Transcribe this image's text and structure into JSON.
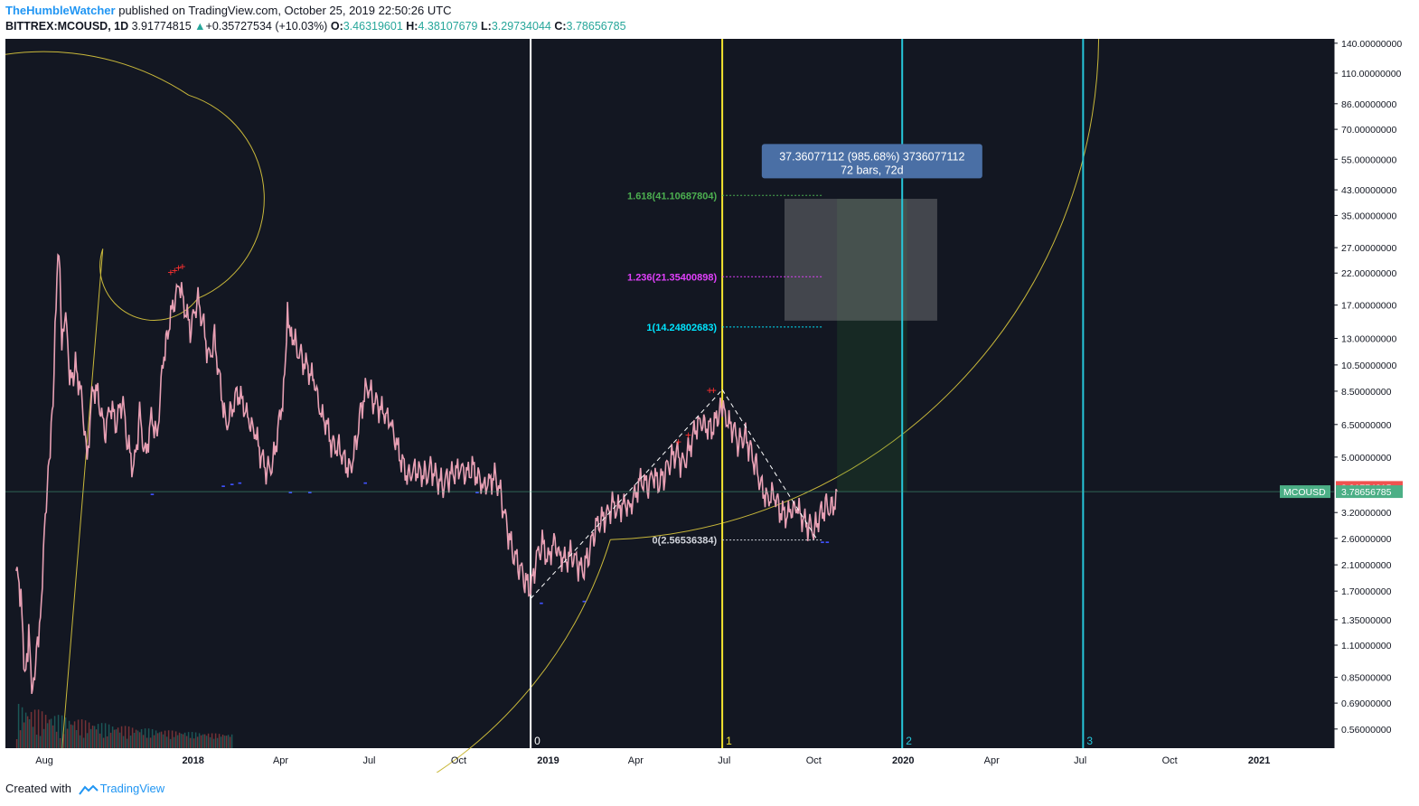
{
  "header": {
    "author": "TheHumbleWatcher",
    "published_text": "published on TradingView.com, October 25, 2019 22:50:26 UTC",
    "symbol": "BITTREX:MCOUSD, 1D",
    "last": "3.91774815",
    "change": "+0.35727534 (+10.03%)",
    "o_label": "O:",
    "o_value": "3.46319601",
    "h_label": "H:",
    "h_value": "4.38107679",
    "l_label": "L:",
    "l_value": "3.29734044",
    "c_label": "C:",
    "c_value": "3.78656785"
  },
  "footer": {
    "created_with": "Created with",
    "brand": "TradingView"
  },
  "colors": {
    "chart_bg": "#131722",
    "axis_text": "#d1d4dc",
    "white_line": "#ffffff",
    "yellow_line": "#f5e52f",
    "cyan_line": "#26c6da",
    "spiral": "#c9b83a",
    "candle": "#e8a0b4",
    "fib_green": "#4caf50",
    "fib_magenta": "#e040fb",
    "fib_cyan": "#00e5ff",
    "price_red": "#ef5350",
    "price_green": "#4caf86",
    "tooltip_bg": "#4a6fa5"
  },
  "chart_data": {
    "type": "line",
    "title": "",
    "xlabel": "",
    "ylabel": "",
    "y_scale": "log",
    "ylim": [
      0.48,
      145
    ],
    "x_range": [
      "2017-06-22",
      "2021-03-19"
    ],
    "x_ticks": [
      {
        "date": "2017-08-01",
        "label": "Aug"
      },
      {
        "date": "2018-01-01",
        "label": "2018"
      },
      {
        "date": "2018-04-01",
        "label": "Apr"
      },
      {
        "date": "2018-07-01",
        "label": "Jul"
      },
      {
        "date": "2018-10-01",
        "label": "Oct"
      },
      {
        "date": "2019-01-01",
        "label": "2019"
      },
      {
        "date": "2019-04-01",
        "label": "Apr"
      },
      {
        "date": "2019-07-01",
        "label": "Jul"
      },
      {
        "date": "2019-10-01",
        "label": "Oct"
      },
      {
        "date": "2020-01-01",
        "label": "2020"
      },
      {
        "date": "2020-04-01",
        "label": "Apr"
      },
      {
        "date": "2020-07-01",
        "label": "Jul"
      },
      {
        "date": "2020-10-01",
        "label": "Oct"
      },
      {
        "date": "2021-01-01",
        "label": "2021"
      }
    ],
    "y_ticks": [
      "140.00000000",
      "110.00000000",
      "86.00000000",
      "70.00000000",
      "55.00000000",
      "43.00000000",
      "35.00000000",
      "27.00000000",
      "22.00000000",
      "17.00000000",
      "13.00000000",
      "10.50000000",
      "8.50000000",
      "6.50000000",
      "5.00000000",
      "3.20000000",
      "2.60000000",
      "2.10000000",
      "1.70000000",
      "1.35000000",
      "1.10000000",
      "0.85000000",
      "0.69000000",
      "0.56000000"
    ],
    "series": [
      {
        "values": [
          [
            "2017-07-03",
            2.0
          ],
          [
            "2017-07-08",
            1.6
          ],
          [
            "2017-07-12",
            0.8
          ],
          [
            "2017-07-16",
            1.2
          ],
          [
            "2017-07-20",
            0.75
          ],
          [
            "2017-07-24",
            1.1
          ],
          [
            "2017-07-28",
            1.4
          ],
          [
            "2017-08-02",
            3.2
          ],
          [
            "2017-08-06",
            5.0
          ],
          [
            "2017-08-10",
            8.0
          ],
          [
            "2017-08-13",
            18.0
          ],
          [
            "2017-08-16",
            27.5
          ],
          [
            "2017-08-19",
            12.0
          ],
          [
            "2017-08-23",
            15.0
          ],
          [
            "2017-08-28",
            9.0
          ],
          [
            "2017-09-02",
            10.5
          ],
          [
            "2017-09-08",
            8.5
          ],
          [
            "2017-09-14",
            5.0
          ],
          [
            "2017-09-20",
            9.0
          ],
          [
            "2017-09-26",
            8.0
          ],
          [
            "2017-10-02",
            6.0
          ],
          [
            "2017-10-08",
            7.5
          ],
          [
            "2017-10-14",
            6.5
          ],
          [
            "2017-10-20",
            8.0
          ],
          [
            "2017-10-26",
            5.5
          ],
          [
            "2017-11-01",
            4.5
          ],
          [
            "2017-11-07",
            7.0
          ],
          [
            "2017-11-13",
            5.0
          ],
          [
            "2017-11-19",
            7.0
          ],
          [
            "2017-11-25",
            6.0
          ],
          [
            "2017-12-01",
            11.0
          ],
          [
            "2017-12-06",
            14.0
          ],
          [
            "2017-12-12",
            17.0
          ],
          [
            "2017-12-18",
            20.0
          ],
          [
            "2017-12-24",
            16.0
          ],
          [
            "2017-12-30",
            14.0
          ],
          [
            "2018-01-05",
            18.0
          ],
          [
            "2018-01-11",
            15.0
          ],
          [
            "2018-01-17",
            11.0
          ],
          [
            "2018-01-23",
            13.0
          ],
          [
            "2018-01-29",
            9.0
          ],
          [
            "2018-02-04",
            6.5
          ],
          [
            "2018-02-10",
            7.5
          ],
          [
            "2018-02-16",
            8.5
          ],
          [
            "2018-02-22",
            7.5
          ],
          [
            "2018-02-28",
            6.5
          ],
          [
            "2018-03-06",
            6.0
          ],
          [
            "2018-03-12",
            5.0
          ],
          [
            "2018-03-18",
            4.5
          ],
          [
            "2018-03-24",
            4.8
          ],
          [
            "2018-03-30",
            6.5
          ],
          [
            "2018-04-04",
            8.5
          ],
          [
            "2018-04-08",
            16.0
          ],
          [
            "2018-04-12",
            14.0
          ],
          [
            "2018-04-18",
            12.0
          ],
          [
            "2018-04-24",
            11.0
          ],
          [
            "2018-04-30",
            10.0
          ],
          [
            "2018-05-06",
            9.0
          ],
          [
            "2018-05-12",
            7.0
          ],
          [
            "2018-05-18",
            6.5
          ],
          [
            "2018-05-24",
            5.5
          ],
          [
            "2018-05-30",
            5.5
          ],
          [
            "2018-06-05",
            5.0
          ],
          [
            "2018-06-11",
            4.5
          ],
          [
            "2018-06-17",
            5.5
          ],
          [
            "2018-06-23",
            7.5
          ],
          [
            "2018-06-29",
            9.0
          ],
          [
            "2018-07-05",
            8.0
          ],
          [
            "2018-07-11",
            7.5
          ],
          [
            "2018-07-17",
            7.0
          ],
          [
            "2018-07-23",
            6.5
          ],
          [
            "2018-07-29",
            5.5
          ],
          [
            "2018-08-04",
            4.8
          ],
          [
            "2018-08-10",
            4.3
          ],
          [
            "2018-08-16",
            4.6
          ],
          [
            "2018-08-22",
            4.5
          ],
          [
            "2018-08-28",
            4.3
          ],
          [
            "2018-09-03",
            4.6
          ],
          [
            "2018-09-09",
            4.2
          ],
          [
            "2018-09-15",
            4.0
          ],
          [
            "2018-09-21",
            4.3
          ],
          [
            "2018-09-27",
            4.4
          ],
          [
            "2018-10-03",
            4.5
          ],
          [
            "2018-10-09",
            4.3
          ],
          [
            "2018-10-15",
            4.6
          ],
          [
            "2018-10-21",
            4.3
          ],
          [
            "2018-10-27",
            4.0
          ],
          [
            "2018-11-02",
            4.2
          ],
          [
            "2018-11-08",
            4.3
          ],
          [
            "2018-11-14",
            3.6
          ],
          [
            "2018-11-20",
            2.8
          ],
          [
            "2018-11-26",
            2.3
          ],
          [
            "2018-12-02",
            2.1
          ],
          [
            "2018-12-08",
            1.85
          ],
          [
            "2018-12-14",
            1.7
          ],
          [
            "2018-12-20",
            2.2
          ],
          [
            "2018-12-26",
            2.5
          ],
          [
            "2019-01-01",
            2.2
          ],
          [
            "2019-01-07",
            2.6
          ],
          [
            "2019-01-13",
            2.3
          ],
          [
            "2019-01-19",
            2.2
          ],
          [
            "2019-01-25",
            2.3
          ],
          [
            "2019-01-31",
            2.1
          ],
          [
            "2019-02-06",
            2.0
          ],
          [
            "2019-02-12",
            2.3
          ],
          [
            "2019-02-18",
            2.8
          ],
          [
            "2019-02-24",
            3.0
          ],
          [
            "2019-03-02",
            3.1
          ],
          [
            "2019-03-08",
            3.4
          ],
          [
            "2019-03-14",
            3.3
          ],
          [
            "2019-03-20",
            3.5
          ],
          [
            "2019-03-26",
            3.4
          ],
          [
            "2019-04-01",
            3.8
          ],
          [
            "2019-04-07",
            4.2
          ],
          [
            "2019-04-13",
            3.9
          ],
          [
            "2019-04-19",
            4.3
          ],
          [
            "2019-04-25",
            4.0
          ],
          [
            "2019-05-01",
            4.4
          ],
          [
            "2019-05-07",
            4.9
          ],
          [
            "2019-05-13",
            5.2
          ],
          [
            "2019-05-19",
            4.7
          ],
          [
            "2019-05-25",
            5.2
          ],
          [
            "2019-05-31",
            6.2
          ],
          [
            "2019-06-06",
            6.8
          ],
          [
            "2019-06-12",
            6.5
          ],
          [
            "2019-06-18",
            6.3
          ],
          [
            "2019-06-24",
            6.8
          ],
          [
            "2019-06-28",
            7.6
          ],
          [
            "2019-07-04",
            6.6
          ],
          [
            "2019-07-10",
            6.3
          ],
          [
            "2019-07-16",
            5.6
          ],
          [
            "2019-07-22",
            6.0
          ],
          [
            "2019-07-28",
            5.3
          ],
          [
            "2019-08-03",
            4.6
          ],
          [
            "2019-08-09",
            3.9
          ],
          [
            "2019-08-15",
            3.6
          ],
          [
            "2019-08-21",
            3.8
          ],
          [
            "2019-08-27",
            3.3
          ],
          [
            "2019-09-02",
            3.1
          ],
          [
            "2019-09-08",
            3.2
          ],
          [
            "2019-09-14",
            3.3
          ],
          [
            "2019-09-20",
            3.0
          ],
          [
            "2019-09-26",
            2.9
          ],
          [
            "2019-10-02",
            2.8
          ],
          [
            "2019-10-08",
            3.2
          ],
          [
            "2019-10-14",
            3.4
          ],
          [
            "2019-10-20",
            3.3
          ],
          [
            "2019-10-25",
            3.79
          ]
        ]
      }
    ],
    "vertical_lines": [
      {
        "date": "2018-12-14",
        "label": "0",
        "color": "white_line"
      },
      {
        "date": "2019-06-29",
        "label": "1",
        "color": "yellow_line"
      },
      {
        "date": "2019-12-31",
        "label": "2",
        "color": "cyan_line"
      },
      {
        "date": "2020-07-04",
        "label": "3",
        "color": "cyan_line"
      }
    ],
    "fib_levels": [
      {
        "text": "1.618(41.10687804)",
        "value": 41.10687804,
        "color": "fib_green"
      },
      {
        "text": "1.236(21.35400898)",
        "value": 21.35400898,
        "color": "fib_magenta"
      },
      {
        "text": "1(14.24802683)",
        "value": 14.24802683,
        "color": "fib_cyan"
      },
      {
        "text": "0(2.56536384)",
        "value": 2.56536384,
        "color": "axis_text"
      }
    ],
    "fib_start_date": "2019-06-29",
    "fib_end_date": "2019-10-10",
    "trend_lines": [
      {
        "from": [
          "2018-12-14",
          1.6
        ],
        "to": [
          "2019-06-29",
          8.6
        ]
      },
      {
        "from": [
          "2019-06-29",
          8.6
        ],
        "to": [
          "2019-10-05",
          2.56
        ]
      }
    ],
    "measure_box": {
      "text1": "37.36077112 (985.68%) 3736077112",
      "text2": "72 bars, 72d",
      "from_date": "2019-10-25",
      "to_date": "2020-01-05",
      "low": 3.79,
      "high": 40.0,
      "tooltip_date": "2019-11-30",
      "tooltip_value": 53.0
    },
    "gray_box": {
      "from_date": "2019-09-01",
      "to_date": "2020-02-05",
      "low": 15.0,
      "high": 40.0
    },
    "markers": {
      "red_plus": [
        [
          "2017-12-09",
          21.5
        ],
        [
          "2017-12-13",
          21.8
        ],
        [
          "2017-12-17",
          22.3
        ],
        [
          "2017-12-21",
          22.5
        ],
        [
          "2019-06-16",
          8.3
        ],
        [
          "2019-06-20",
          8.3
        ],
        [
          "2019-05-15",
          5.5
        ],
        [
          "2019-05-25",
          5.8
        ]
      ],
      "blue_minus": [
        [
          "2017-11-20",
          3.6
        ],
        [
          "2018-02-01",
          3.85
        ],
        [
          "2018-02-10",
          3.9
        ],
        [
          "2018-02-18",
          3.95
        ],
        [
          "2018-04-11",
          3.65
        ],
        [
          "2018-05-01",
          3.65
        ],
        [
          "2018-06-27",
          3.95
        ],
        [
          "2018-10-20",
          3.65
        ],
        [
          "2018-12-25",
          1.5
        ],
        [
          "2019-02-07",
          1.52
        ],
        [
          "2019-10-10",
          2.45
        ],
        [
          "2019-10-15",
          2.45
        ]
      ]
    },
    "price_labels": [
      {
        "text": "3.91774815",
        "value": 3.91774815,
        "color": "price_red"
      },
      {
        "text": "3.78656785",
        "value": 3.78656785,
        "color": "price_green",
        "tag": "MCOUSD"
      }
    ]
  }
}
